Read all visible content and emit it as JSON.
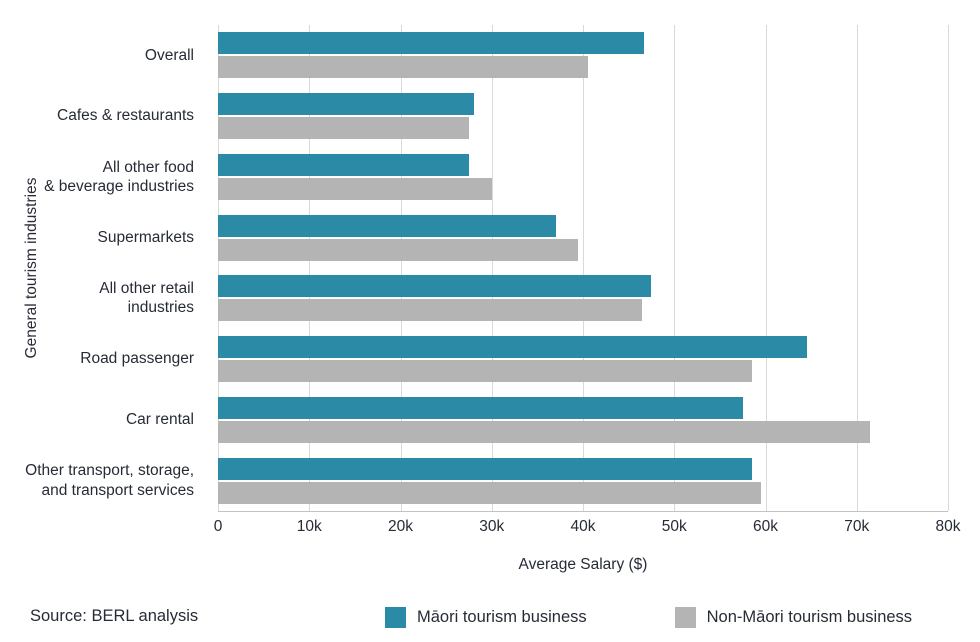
{
  "chart_data": {
    "type": "bar",
    "orientation": "horizontal",
    "title": "",
    "categories": [
      "Overall",
      "Cafes & restaurants",
      "All other food\n& beverage industries",
      "Supermarkets",
      "All other retail\nindustries",
      "Road passenger",
      "Car rental",
      "Other transport, storage,\nand transport services"
    ],
    "series": [
      {
        "name": "Māori tourism business",
        "color": "#2b8aa5",
        "values": [
          46700,
          28000,
          27500,
          37000,
          47500,
          64500,
          57500,
          58500
        ]
      },
      {
        "name": "Non-Māori tourism business",
        "color": "#b5b4b4",
        "values": [
          40500,
          27500,
          30000,
          39500,
          46500,
          58500,
          71500,
          59500
        ]
      }
    ],
    "xlabel": "Average Salary ($)",
    "ylabel": "General tourism industries",
    "xlim": [
      0,
      80000
    ],
    "xticks": [
      0,
      10000,
      20000,
      30000,
      40000,
      50000,
      60000,
      70000,
      80000
    ],
    "xtick_labels": [
      "0",
      "10k",
      "20k",
      "30k",
      "40k",
      "50k",
      "60k",
      "70k",
      "80k"
    ],
    "grid": true,
    "legend_position": "bottom"
  },
  "source": "Source: BERL analysis",
  "colors": {
    "gridline": "#d9d9d9",
    "axis": "#c2c2c2",
    "text": "#262b35"
  }
}
